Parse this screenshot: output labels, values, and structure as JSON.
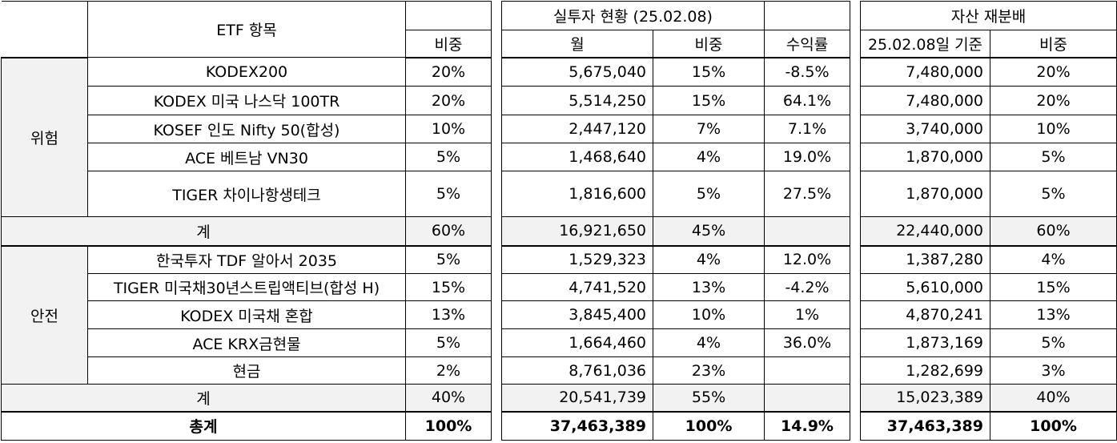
{
  "headers": {
    "etf_item": "ETF 항목",
    "weight": "비중",
    "actual_title": "실투자 현황 (25.02.08)",
    "actual_monthly": "월",
    "actual_weight": "비중",
    "actual_return": "수익률",
    "rebal_title": "자산 재분배",
    "rebal_basis": "25.02.08일 기준",
    "rebal_weight": "비중"
  },
  "risk": {
    "label": "위험",
    "rows": [
      {
        "name": "KODEX200",
        "weight": "20%",
        "amount": "5,675,040",
        "aw": "15%",
        "ret": "-8.5%",
        "rebal": "7,480,000",
        "rw": "20%"
      },
      {
        "name": "KODEX 미국 나스닥 100TR",
        "weight": "20%",
        "amount": "5,514,250",
        "aw": "15%",
        "ret": "64.1%",
        "rebal": "7,480,000",
        "rw": "20%"
      },
      {
        "name": "KOSEF 인도 Nifty 50(합성)",
        "weight": "10%",
        "amount": "2,447,120",
        "aw": "7%",
        "ret": "7.1%",
        "rebal": "3,740,000",
        "rw": "10%"
      },
      {
        "name": "ACE 베트남 VN30",
        "weight": "5%",
        "amount": "1,468,640",
        "aw": "4%",
        "ret": "19.0%",
        "rebal": "1,870,000",
        "rw": "5%"
      },
      {
        "name": "TIGER 차이나항생테크",
        "weight": "5%",
        "amount": "1,816,600",
        "aw": "5%",
        "ret": "27.5%",
        "rebal": "1,870,000",
        "rw": "5%"
      }
    ],
    "subtotal": {
      "label": "계",
      "weight": "60%",
      "amount": "16,921,650",
      "aw": "45%",
      "ret": "",
      "rebal": "22,440,000",
      "rw": "60%"
    }
  },
  "safe": {
    "label": "안전",
    "rows": [
      {
        "name": "한국투자 TDF 알아서 2035",
        "weight": "5%",
        "amount": "1,529,323",
        "aw": "4%",
        "ret": "12.0%",
        "rebal": "1,387,280",
        "rw": "4%"
      },
      {
        "name": "TIGER 미국채30년스트립액티브(합성 H)",
        "weight": "15%",
        "amount": "4,741,520",
        "aw": "13%",
        "ret": "-4.2%",
        "rebal": "5,610,000",
        "rw": "15%"
      },
      {
        "name": "KODEX 미국채 혼합",
        "weight": "13%",
        "amount": "3,845,400",
        "aw": "10%",
        "ret": "1%",
        "rebal": "4,870,241",
        "rw": "13%"
      },
      {
        "name": "ACE KRX금현물",
        "weight": "5%",
        "amount": "1,664,460",
        "aw": "4%",
        "ret": "36.0%",
        "rebal": "1,873,169",
        "rw": "5%"
      },
      {
        "name": "현금",
        "weight": "2%",
        "amount": "8,761,036",
        "aw": "23%",
        "ret": "",
        "rebal": "1,282,699",
        "rw": "3%"
      }
    ],
    "subtotal": {
      "label": "계",
      "weight": "40%",
      "amount": "20,541,739",
      "aw": "55%",
      "ret": "",
      "rebal": "15,023,389",
      "rw": "40%"
    }
  },
  "total": {
    "label": "총계",
    "weight": "100%",
    "amount": "37,463,389",
    "aw": "100%",
    "ret": "14.9%",
    "rebal": "37,463,389",
    "rw": "100%"
  }
}
